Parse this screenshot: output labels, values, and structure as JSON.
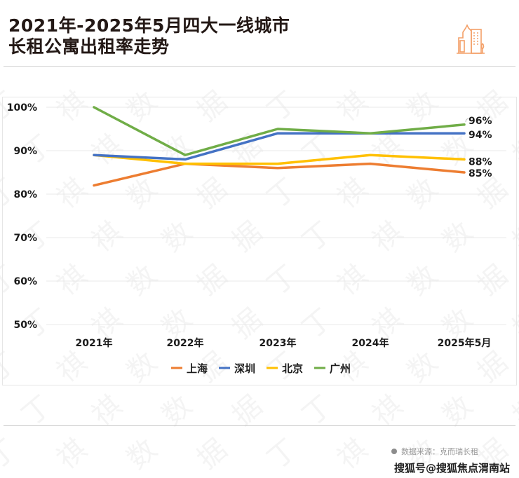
{
  "header": {
    "title_line1": "2021年-2025年5月四大一线城市",
    "title_line2": "长租公寓出租率走势",
    "icon": "city-buildings-icon",
    "icon_color": "#F4A068"
  },
  "footer": {
    "source": "数据来源：克而瑞长租",
    "credit": "搜狐号@搜狐焦点渭南站"
  },
  "watermark": "丁祺数据",
  "chart_data": {
    "type": "line",
    "title": "2021年-2025年5月四大一线城市长租公寓出租率走势",
    "xlabel": "",
    "ylabel": "",
    "categories": [
      "2021年",
      "2022年",
      "2023年",
      "2024年",
      "2025年5月"
    ],
    "ylim": [
      50,
      100
    ],
    "yticks": [
      50,
      60,
      70,
      80,
      90,
      100
    ],
    "ytick_labels": [
      "50%",
      "60%",
      "70%",
      "80%",
      "90%",
      "100%"
    ],
    "grid": true,
    "legend_position": "bottom",
    "series": [
      {
        "name": "上海",
        "color": "#ED7D31",
        "values": [
          82,
          87,
          86,
          87,
          85
        ],
        "end_label": "85%"
      },
      {
        "name": "深圳",
        "color": "#4472C4",
        "values": [
          89,
          88,
          94,
          94,
          94
        ],
        "end_label": "94%"
      },
      {
        "name": "北京",
        "color": "#FFC000",
        "values": [
          89,
          87,
          87,
          89,
          88
        ],
        "end_label": "88%"
      },
      {
        "name": "广州",
        "color": "#70AD47",
        "values": [
          100,
          89,
          95,
          94,
          96
        ],
        "end_label": "96%"
      }
    ]
  }
}
